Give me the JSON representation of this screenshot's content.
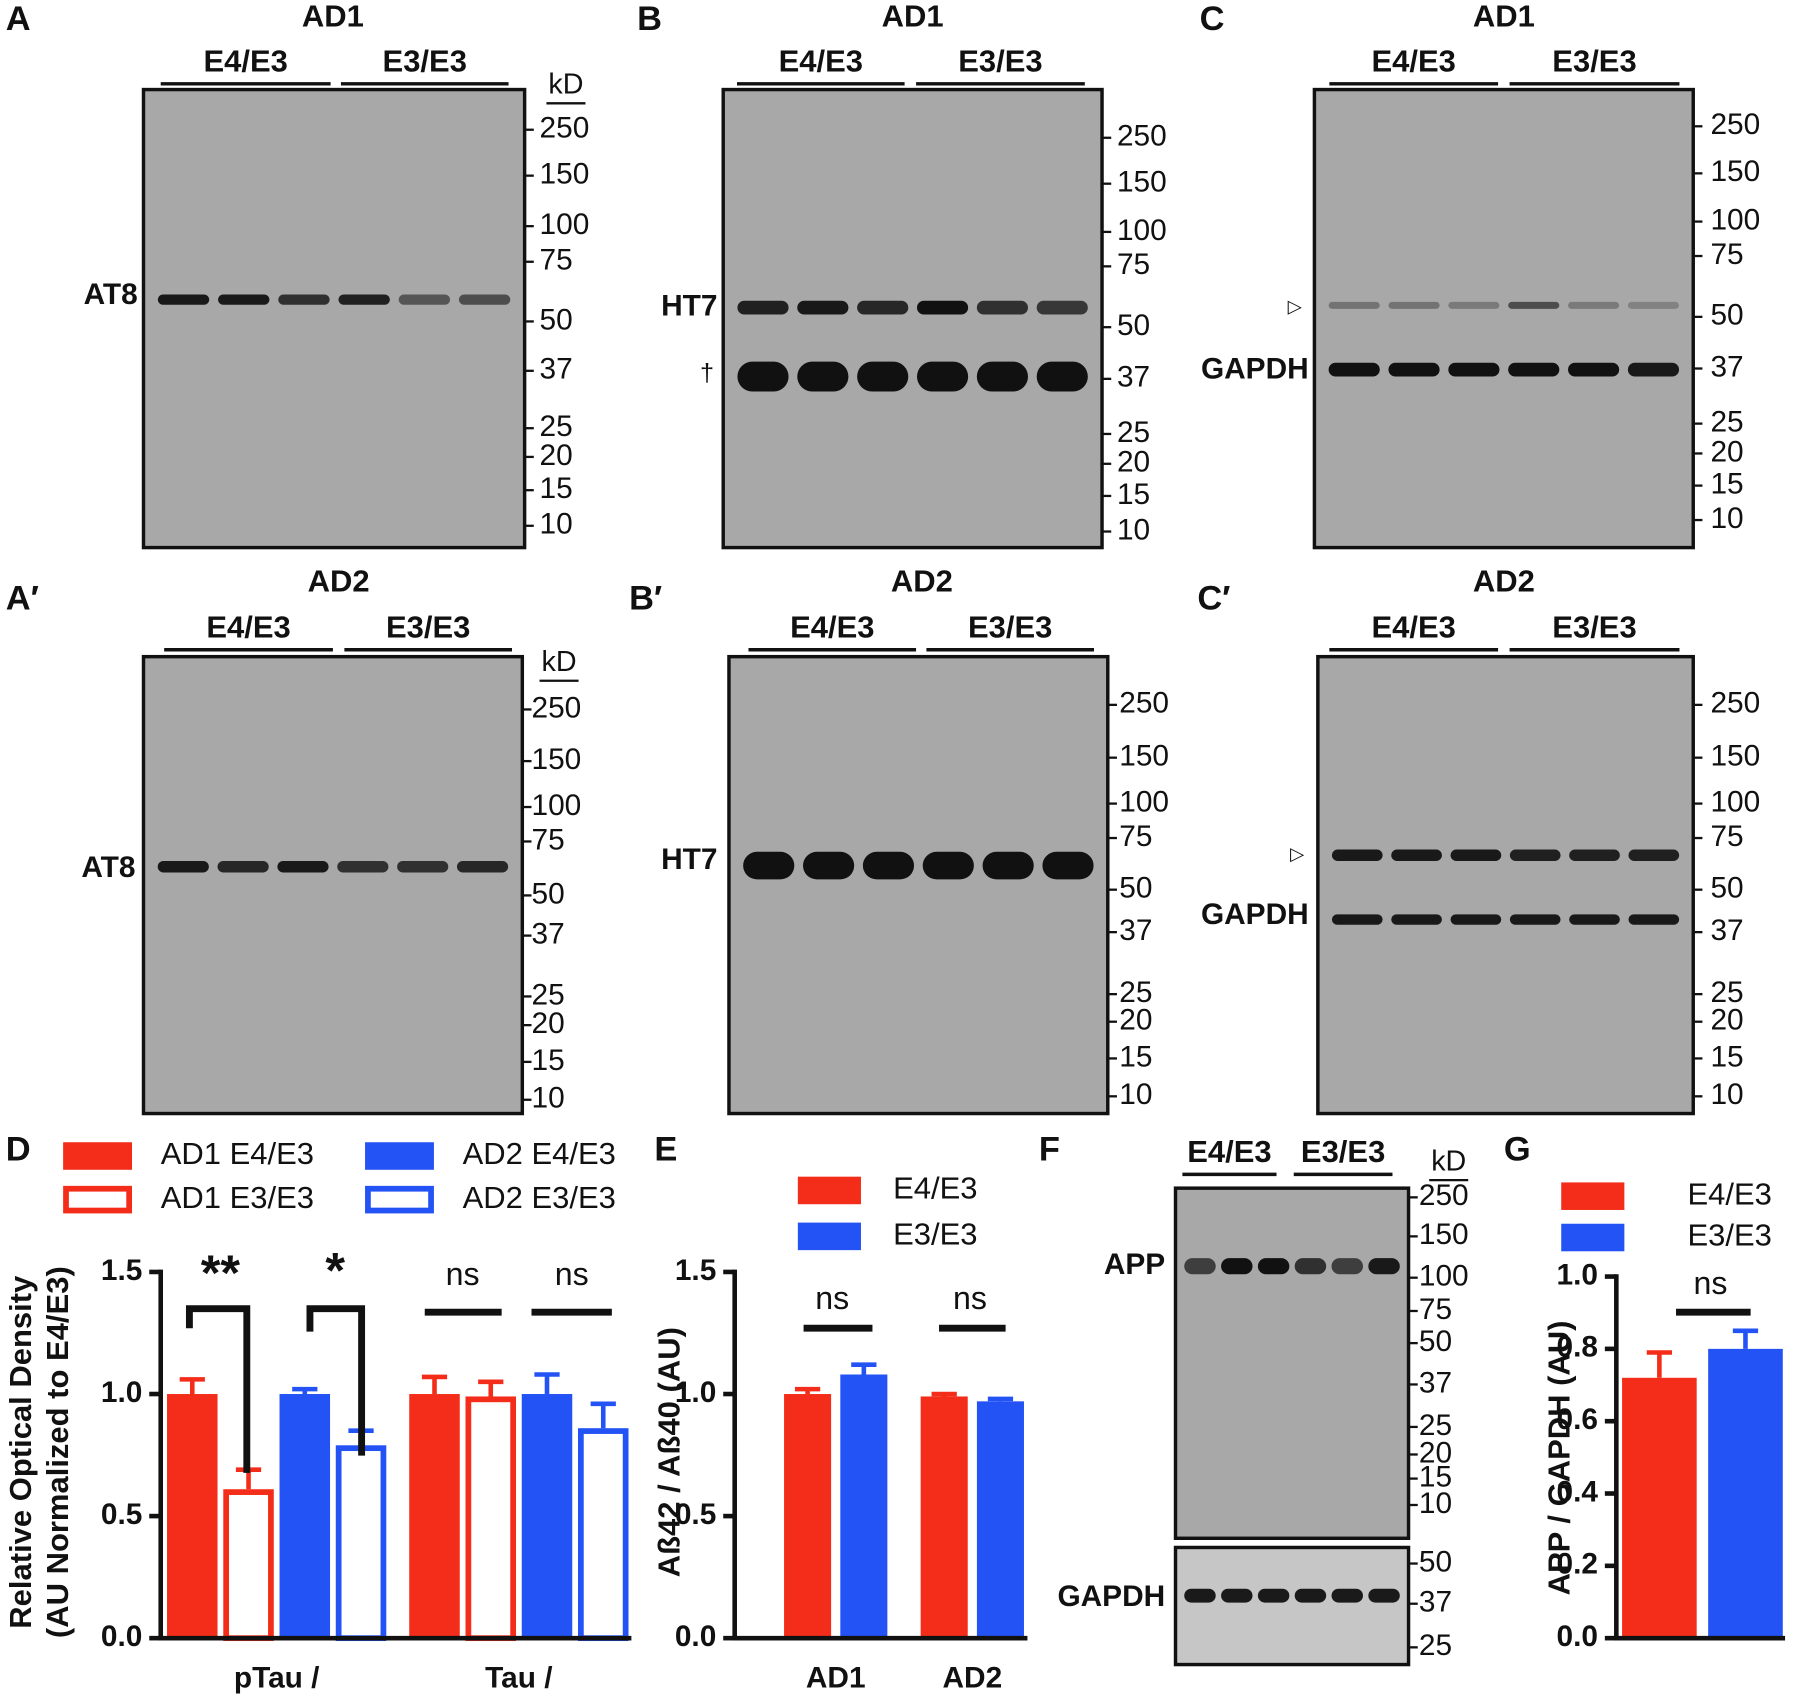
{
  "blots": [
    {
      "letter": "A",
      "title": "AD1",
      "groups": [
        "E4/E3",
        "E3/E3"
      ],
      "unit": "kD",
      "markers": [
        250,
        150,
        100,
        75,
        50,
        37,
        25,
        20,
        15,
        10
      ],
      "labels": [
        "AT8"
      ]
    },
    {
      "letter": "B",
      "title": "AD1",
      "groups": [
        "E4/E3",
        "E3/E3"
      ],
      "markers": [
        250,
        150,
        100,
        75,
        50,
        37,
        25,
        20,
        15,
        10
      ],
      "labels": [
        "HT7",
        "†"
      ]
    },
    {
      "letter": "C",
      "title": "AD1",
      "groups": [
        "E4/E3",
        "E3/E3"
      ],
      "markers": [
        250,
        150,
        100,
        75,
        50,
        37,
        25,
        20,
        15,
        10
      ],
      "labels": [
        "▷",
        "GAPDH"
      ]
    },
    {
      "letter": "A′",
      "title": "AD2",
      "groups": [
        "E4/E3",
        "E3/E3"
      ],
      "unit": "kD",
      "markers": [
        250,
        150,
        100,
        75,
        50,
        37,
        25,
        20,
        15,
        10
      ],
      "labels": [
        "AT8"
      ]
    },
    {
      "letter": "B′",
      "title": "AD2",
      "groups": [
        "E4/E3",
        "E3/E3"
      ],
      "markers": [
        250,
        150,
        100,
        75,
        50,
        37,
        25,
        20,
        15,
        10
      ],
      "labels": [
        "HT7"
      ]
    },
    {
      "letter": "C′",
      "title": "AD2",
      "groups": [
        "E4/E3",
        "E3/E3"
      ],
      "markers": [
        250,
        150,
        100,
        75,
        50,
        37,
        25,
        20,
        15,
        10
      ],
      "labels": [
        "▷",
        "GAPDH"
      ]
    }
  ],
  "blot_f": {
    "letter": "F",
    "groups": [
      "E4/E3",
      "E3/E3"
    ],
    "unit": "kD",
    "markers": [
      250,
      150,
      100,
      75,
      50,
      37,
      25,
      20,
      15,
      10
    ],
    "label": "APP",
    "loading_markers": [
      50,
      37,
      25
    ],
    "loading_label": "GAPDH"
  },
  "chart_data": [
    {
      "type": "bar",
      "letter": "D",
      "ylabel": [
        "Relative Optical Density",
        "(AU Normalized to E4/E3)"
      ],
      "categories": [
        "pTau /",
        "Tau /"
      ],
      "series": [
        {
          "name": "AD1 E4/E3",
          "color": "#f42d1a",
          "hollow": false,
          "values": [
            1.0,
            1.0
          ],
          "errors": [
            0.06,
            0.07
          ]
        },
        {
          "name": "AD1 E3/E3",
          "color": "#f42d1a",
          "hollow": true,
          "values": [
            0.61,
            0.99
          ],
          "errors": [
            0.08,
            0.06
          ]
        },
        {
          "name": "AD2 E4/E3",
          "color": "#2353f5",
          "hollow": false,
          "values": [
            1.0,
            1.0
          ],
          "errors": [
            0.02,
            0.08
          ]
        },
        {
          "name": "AD2 E3/E3",
          "color": "#2353f5",
          "hollow": true,
          "values": [
            0.79,
            0.86
          ],
          "errors": [
            0.06,
            0.1
          ]
        }
      ],
      "ylim": [
        0,
        1.5
      ],
      "yticks": [
        {
          "value": 0,
          "label": "0.0"
        },
        0.5,
        {
          "value": 1,
          "label": "1.0"
        },
        1.5
      ],
      "annotations": [
        "**",
        "*",
        "ns",
        "ns"
      ]
    },
    {
      "type": "bar",
      "letter": "E",
      "ylabel": [
        "Aß42 / Aß40 (AU)"
      ],
      "categories": [
        "AD1",
        "AD2"
      ],
      "series": [
        {
          "name": "E4/E3",
          "color": "#f42d1a",
          "hollow": false,
          "values": [
            1.0,
            0.99
          ],
          "errors": [
            0.02,
            0.01
          ]
        },
        {
          "name": "E3/E3",
          "color": "#2353f5",
          "hollow": false,
          "values": [
            1.08,
            0.97
          ],
          "errors": [
            0.04,
            0.01
          ]
        }
      ],
      "ylim": [
        0,
        1.5
      ],
      "yticks": [
        {
          "value": 0,
          "label": "0.0"
        },
        0.5,
        {
          "value": 1,
          "label": "1.0"
        },
        1.5
      ],
      "annotations": [
        "ns",
        "ns"
      ]
    },
    {
      "type": "bar",
      "letter": "G",
      "ylabel": [
        "APP / GAPDH (AU)"
      ],
      "categories": [
        null
      ],
      "series": [
        {
          "name": "E4/E3",
          "color": "#f42d1a",
          "hollow": false,
          "values": [
            0.72
          ],
          "errors": [
            0.07
          ]
        },
        {
          "name": "E3/E3",
          "color": "#2353f5",
          "hollow": false,
          "values": [
            0.8
          ],
          "errors": [
            0.05
          ]
        }
      ],
      "ylim": [
        0,
        1
      ],
      "yticks": [
        {
          "value": 0,
          "label": "0.0"
        },
        0.2,
        0.4,
        0.6,
        0.8,
        {
          "value": 1,
          "label": "1.0"
        }
      ],
      "annotations": [
        "ns"
      ]
    }
  ]
}
